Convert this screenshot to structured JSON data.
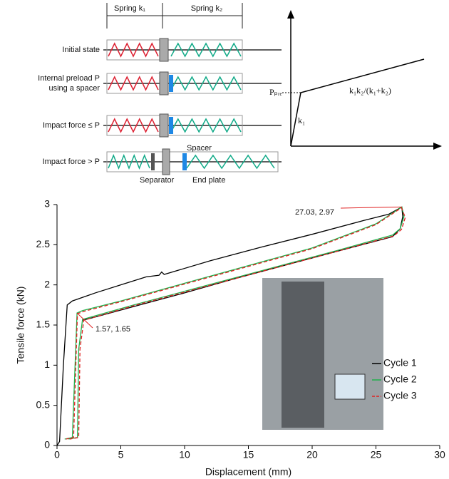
{
  "diagram": {
    "spring_labels": [
      "Spring k₁",
      "Spring k₂"
    ],
    "rows": [
      "Initial state",
      "Internal preload P",
      "using a spacer",
      "Impact force ≤ P",
      "Impact force > P"
    ],
    "parts": [
      "Spacer",
      "Separator",
      "End plate"
    ],
    "graph": {
      "preload": "Pₚᵣₑ",
      "k1": "k₁",
      "slope": "k₁k₂/(k₁+k₂)"
    }
  },
  "chart_data": {
    "type": "line",
    "xlabel": "Displacement (mm)",
    "ylabel": "Tensile force (kN)",
    "xlim": [
      0,
      30
    ],
    "ylim": [
      0,
      3
    ],
    "xticks": [
      0,
      5,
      10,
      15,
      20,
      25,
      30
    ],
    "yticks": [
      0,
      0.5,
      1,
      1.5,
      2,
      2.5,
      3
    ],
    "grid": false,
    "legend": "lower right",
    "annotations": [
      "27.03, 2.97",
      "1.57, 1.65"
    ],
    "series": [
      {
        "name": "Cycle 1",
        "color": "#000000",
        "dash": false,
        "x": [
          0,
          0.2,
          0.5,
          0.8,
          1.2,
          3,
          5,
          7,
          8,
          8.2,
          8.4,
          12,
          16,
          20,
          24,
          26,
          26.8,
          27.03,
          27.1,
          26.9,
          26.3,
          22,
          18,
          14,
          10,
          6,
          3,
          2
        ],
        "values": [
          0,
          0.05,
          1,
          1.75,
          1.8,
          1.9,
          2,
          2.1,
          2.12,
          2.16,
          2.13,
          2.3,
          2.47,
          2.63,
          2.8,
          2.88,
          2.95,
          2.97,
          2.85,
          2.7,
          2.6,
          2.42,
          2.25,
          2.08,
          1.9,
          1.73,
          1.6,
          1.56
        ]
      },
      {
        "name": "Cycle 2",
        "color": "#22b14c",
        "dash": false,
        "x": [
          0.6,
          1.2,
          1.57,
          2,
          5,
          10,
          15,
          20,
          25,
          27.03,
          27.2,
          26.9,
          26.3,
          22,
          18,
          14,
          10,
          6,
          2,
          1.7,
          1.6,
          0.9
        ],
        "values": [
          0.08,
          0.1,
          1.65,
          1.68,
          1.8,
          2.02,
          2.24,
          2.46,
          2.76,
          2.97,
          2.85,
          2.7,
          2.62,
          2.43,
          2.26,
          2.09,
          1.92,
          1.75,
          1.57,
          1.2,
          0.1,
          0.08
        ]
      },
      {
        "name": "Cycle 3",
        "color": "#e02020",
        "dash": true,
        "x": [
          0.7,
          1.3,
          1.6,
          2.1,
          5,
          10,
          15,
          20,
          25,
          27,
          27.3,
          27,
          26.4,
          22,
          18,
          14,
          10,
          6,
          2.1,
          1.8,
          1.7,
          1
        ],
        "values": [
          0.08,
          0.1,
          1.64,
          1.67,
          1.79,
          2.01,
          2.23,
          2.45,
          2.75,
          2.96,
          2.84,
          2.69,
          2.61,
          2.42,
          2.25,
          2.08,
          1.91,
          1.74,
          1.56,
          1.2,
          0.1,
          0.08
        ]
      }
    ]
  }
}
